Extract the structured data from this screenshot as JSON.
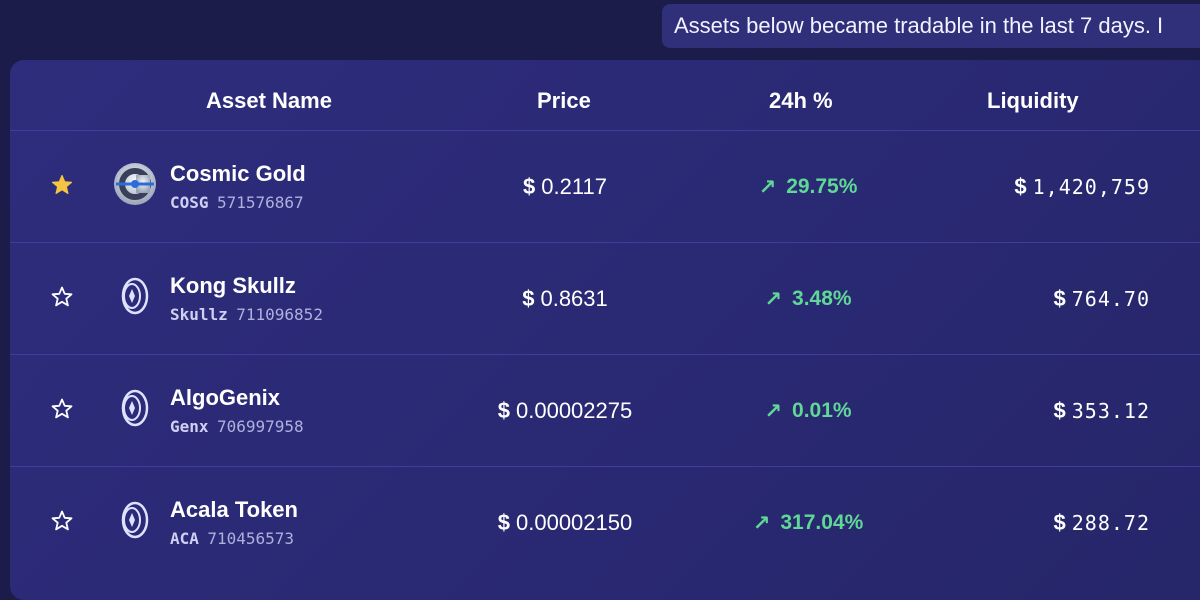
{
  "notice": {
    "text": "Assets below became tradable in the last 7 days. I"
  },
  "columns": {
    "asset_name": "Asset Name",
    "price": "Price",
    "change": "24h %",
    "liquidity": "Liquidity"
  },
  "colors": {
    "background": "#1c1c4a",
    "panel": "#2b2a78",
    "positive": "#5fd896",
    "star_filled": "#f5c542"
  },
  "rows": [
    {
      "favorite": true,
      "icon": "cosmic-gold-logo",
      "name": "Cosmic Gold",
      "code": "COSG",
      "id": "571576867",
      "currency": "$",
      "price": "0.2117",
      "change_arrow": "↗",
      "change": "29.75%",
      "liquidity": "1,420,759"
    },
    {
      "favorite": false,
      "icon": "coin-icon",
      "name": "Kong Skullz",
      "code": "Skullz",
      "id": "711096852",
      "currency": "$",
      "price": "0.8631",
      "change_arrow": "↗",
      "change": "3.48%",
      "liquidity": "764.70"
    },
    {
      "favorite": false,
      "icon": "coin-icon",
      "name": "AlgoGenix",
      "code": "Genx",
      "id": "706997958",
      "currency": "$",
      "price": "0.00002275",
      "change_arrow": "↗",
      "change": "0.01%",
      "liquidity": "353.12"
    },
    {
      "favorite": false,
      "icon": "coin-icon",
      "name": "Acala Token",
      "code": "ACA",
      "id": "710456573",
      "currency": "$",
      "price": "0.00002150",
      "change_arrow": "↗",
      "change": "317.04%",
      "liquidity": "288.72"
    }
  ]
}
